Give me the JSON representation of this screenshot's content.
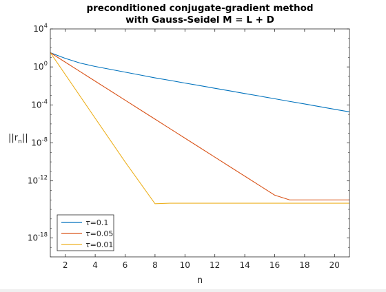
{
  "chart_data": {
    "type": "line",
    "title_lines": [
      "preconditioned conjugate-gradient method",
      "with Gauss-Seidel M = L + D"
    ],
    "xlabel": "n",
    "ylabel": "||r_n||",
    "ylabel_parts": {
      "base": "||r",
      "sub": "n",
      "end": "||"
    },
    "xlim": [
      1,
      21
    ],
    "ylim_log10": [
      -20,
      4
    ],
    "yscale": "log",
    "xticks": [
      2,
      4,
      6,
      8,
      10,
      12,
      14,
      16,
      18,
      20
    ],
    "yticks": [
      {
        "base": "10",
        "exp": "4",
        "value_log10": 4
      },
      {
        "base": "10",
        "exp": "0",
        "value_log10": 0
      },
      {
        "base": "10",
        "exp": "-4",
        "value_log10": -4
      },
      {
        "base": "10",
        "exp": "-8",
        "value_log10": -8
      },
      {
        "base": "10",
        "exp": "-12",
        "value_log10": -12
      },
      {
        "base": "10",
        "exp": "-18",
        "value_log10": -18
      }
    ],
    "grid": false,
    "legend_location": "bottom-left",
    "series": [
      {
        "name": "τ=0.1",
        "label_tau": "τ",
        "label_value": "=0.1",
        "color": "#0072bd",
        "x": [
          1,
          2,
          3,
          4,
          5,
          6,
          7,
          8,
          9,
          10,
          11,
          12,
          13,
          14,
          15,
          16,
          17,
          18,
          19,
          20,
          21
        ],
        "y_log10": [
          1.5,
          0.9,
          0.4,
          0.05,
          -0.25,
          -0.55,
          -0.85,
          -1.15,
          -1.42,
          -1.7,
          -1.97,
          -2.25,
          -2.52,
          -2.8,
          -3.07,
          -3.35,
          -3.63,
          -3.9,
          -4.18,
          -4.46,
          -4.73
        ]
      },
      {
        "name": "τ=0.05",
        "label_tau": "τ",
        "label_value": "=0.05",
        "color": "#d95319",
        "x": [
          1,
          2,
          3,
          4,
          5,
          6,
          7,
          8,
          9,
          10,
          11,
          12,
          13,
          14,
          15,
          16,
          17,
          18,
          19,
          20,
          21
        ],
        "y_log10": [
          1.5,
          0.5,
          -0.5,
          -1.5,
          -2.5,
          -3.5,
          -4.5,
          -5.5,
          -6.5,
          -7.5,
          -8.5,
          -9.5,
          -10.5,
          -11.5,
          -12.5,
          -13.5,
          -14.0,
          -14.0,
          -14.0,
          -14.0,
          -14.0
        ]
      },
      {
        "name": "τ=0.01",
        "label_tau": "τ",
        "label_value": "=0.01",
        "color": "#edb120",
        "x": [
          1,
          2,
          3,
          4,
          5,
          6,
          7,
          8,
          9,
          10,
          11,
          12,
          13,
          14,
          15,
          16,
          17,
          18,
          19,
          20,
          21
        ],
        "y_log10": [
          1.5,
          -0.8,
          -3.1,
          -5.4,
          -7.7,
          -10.0,
          -12.2,
          -14.4,
          -14.35,
          -14.35,
          -14.35,
          -14.35,
          -14.35,
          -14.35,
          -14.35,
          -14.35,
          -14.35,
          -14.35,
          -14.35,
          -14.35,
          -14.35
        ]
      }
    ]
  }
}
